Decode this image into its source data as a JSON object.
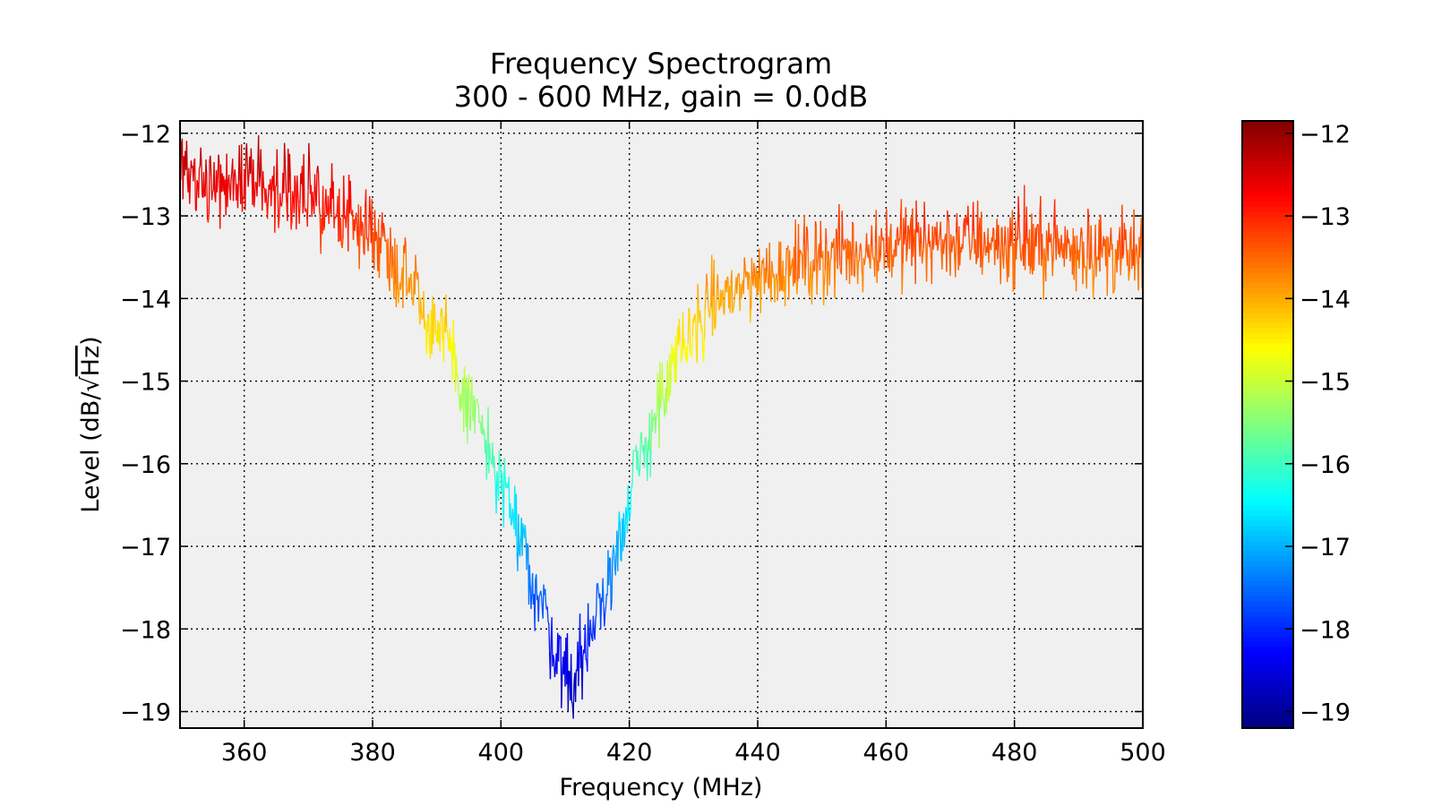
{
  "chart_data": {
    "type": "line",
    "title": "Frequency Spectrogram",
    "subtitle": "300 - 600 MHz, gain = 0.0dB",
    "xlabel": "Frequency (MHz)",
    "ylabel_prefix": "Level (dB/",
    "ylabel_root": "√",
    "ylabel_unit": "Hz",
    "ylabel_suffix": ")",
    "xlim": [
      350,
      500
    ],
    "ylim": [
      -19.2,
      -11.85
    ],
    "x_ticks": [
      {
        "value": 360,
        "label": "360"
      },
      {
        "value": 380,
        "label": "380"
      },
      {
        "value": 400,
        "label": "400"
      },
      {
        "value": 420,
        "label": "420"
      },
      {
        "value": 440,
        "label": "440"
      },
      {
        "value": 460,
        "label": "460"
      },
      {
        "value": 480,
        "label": "480"
      },
      {
        "value": 500,
        "label": "500"
      }
    ],
    "y_ticks": [
      {
        "value": -12,
        "label": "−12"
      },
      {
        "value": -13,
        "label": "−13"
      },
      {
        "value": -14,
        "label": "−14"
      },
      {
        "value": -15,
        "label": "−15"
      },
      {
        "value": -16,
        "label": "−16"
      },
      {
        "value": -17,
        "label": "−17"
      },
      {
        "value": -18,
        "label": "−18"
      },
      {
        "value": -19,
        "label": "−19"
      }
    ],
    "grid": true,
    "plot_background": "#f0f0f0",
    "colormap": "jet",
    "colorbar": {
      "range": [
        -19.2,
        -11.85
      ],
      "ticks": [
        {
          "value": -12,
          "label": "−12"
        },
        {
          "value": -13,
          "label": "−13"
        },
        {
          "value": -14,
          "label": "−14"
        },
        {
          "value": -15,
          "label": "−15"
        },
        {
          "value": -16,
          "label": "−16"
        },
        {
          "value": -17,
          "label": "−17"
        },
        {
          "value": -18,
          "label": "−18"
        },
        {
          "value": -19,
          "label": "−19"
        }
      ]
    },
    "series": [
      {
        "x": [
          350,
          355,
          360,
          365,
          370,
          375,
          380,
          385,
          390,
          395,
          400,
          403,
          406,
          409,
          411,
          413,
          416,
          419,
          422,
          425,
          428,
          431,
          435,
          440,
          445,
          450,
          455,
          460,
          465,
          470,
          475,
          480,
          485,
          490,
          495,
          500
        ],
        "y": [
          -12.5,
          -12.55,
          -12.55,
          -12.65,
          -12.8,
          -12.95,
          -13.2,
          -13.65,
          -14.35,
          -15.25,
          -16.2,
          -16.95,
          -17.65,
          -18.3,
          -18.6,
          -18.35,
          -17.6,
          -16.75,
          -15.9,
          -15.2,
          -14.65,
          -14.25,
          -13.95,
          -13.75,
          -13.6,
          -13.5,
          -13.45,
          -13.35,
          -13.3,
          -13.3,
          -13.3,
          -13.35,
          -13.35,
          -13.4,
          -13.45,
          -13.5
        ],
        "noise_amplitude_db": 0.38
      }
    ]
  }
}
